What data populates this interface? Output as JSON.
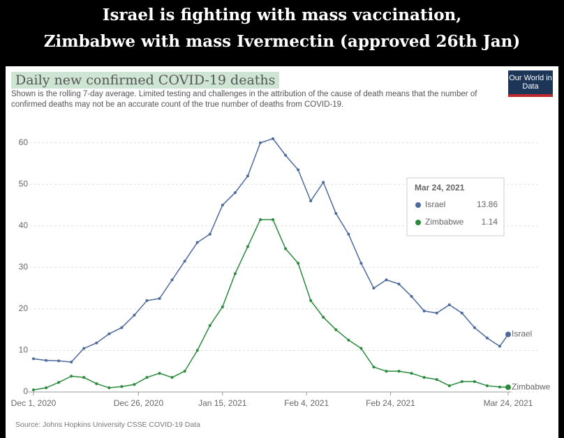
{
  "header": {
    "lines": [
      "Israel is fighting with mass vaccination,",
      "Zimbabwe with mass Ivermectin (approved 26th Jan)"
    ]
  },
  "logo": "Our World in Data",
  "chart_data": {
    "type": "line",
    "title": "Daily new confirmed COVID-19 deaths",
    "subtitle": "Shown is the rolling 7-day average. Limited testing and challenges in the attribution of the cause of death means that the number of confirmed deaths may not be an accurate count of the true number of deaths from COVID-19.",
    "source": "Source: Johns Hopkins University CSSE COVID-19 Data",
    "x": [
      "2020-12-01",
      "2020-12-04",
      "2020-12-07",
      "2020-12-10",
      "2020-12-13",
      "2020-12-16",
      "2020-12-19",
      "2020-12-22",
      "2020-12-25",
      "2020-12-28",
      "2020-12-31",
      "2021-01-03",
      "2021-01-06",
      "2021-01-09",
      "2021-01-12",
      "2021-01-15",
      "2021-01-18",
      "2021-01-21",
      "2021-01-24",
      "2021-01-27",
      "2021-01-30",
      "2021-02-02",
      "2021-02-05",
      "2021-02-08",
      "2021-02-11",
      "2021-02-14",
      "2021-02-17",
      "2021-02-20",
      "2021-02-23",
      "2021-02-26",
      "2021-03-01",
      "2021-03-04",
      "2021-03-07",
      "2021-03-10",
      "2021-03-13",
      "2021-03-16",
      "2021-03-19",
      "2021-03-22",
      "2021-03-24"
    ],
    "series": [
      {
        "name": "Israel",
        "color": "#4c6a9c",
        "values": [
          8,
          7.6,
          7.5,
          7.2,
          10.5,
          11.8,
          14,
          15.5,
          18.5,
          22,
          22.5,
          27,
          31.5,
          36,
          38,
          45,
          48,
          52,
          60,
          61,
          57,
          53.5,
          46,
          50.5,
          43,
          38,
          31,
          25,
          27,
          26,
          23,
          19.5,
          19,
          21,
          19,
          15.5,
          13,
          11,
          13.86
        ]
      },
      {
        "name": "Zimbabwe",
        "color": "#2a8a3c",
        "values": [
          0.5,
          1,
          2.3,
          3.8,
          3.5,
          2,
          1,
          1.3,
          1.8,
          3.5,
          4.5,
          3.5,
          5,
          10,
          16,
          20.5,
          28.5,
          35,
          41.5,
          41.5,
          34.5,
          31,
          22,
          18,
          15,
          12.5,
          10.5,
          6,
          5,
          5,
          4.5,
          3.5,
          3,
          1.5,
          2.5,
          2.5,
          1.5,
          1.2,
          1.14
        ]
      }
    ],
    "xlim": [
      "2020-12-01",
      "2021-03-24"
    ],
    "xticks": [
      {
        "value": "2020-12-01",
        "label": "Dec 1, 2020"
      },
      {
        "value": "2020-12-26",
        "label": "Dec 26, 2020"
      },
      {
        "value": "2021-01-15",
        "label": "Jan 15, 2021"
      },
      {
        "value": "2021-02-04",
        "label": "Feb 4, 2021"
      },
      {
        "value": "2021-02-24",
        "label": "Feb 24, 2021"
      },
      {
        "value": "2021-03-24",
        "label": "Mar 24, 2021"
      }
    ],
    "ylim": [
      0,
      65
    ],
    "yticks": [
      0,
      10,
      20,
      30,
      40,
      50,
      60
    ],
    "grid": true
  }
}
